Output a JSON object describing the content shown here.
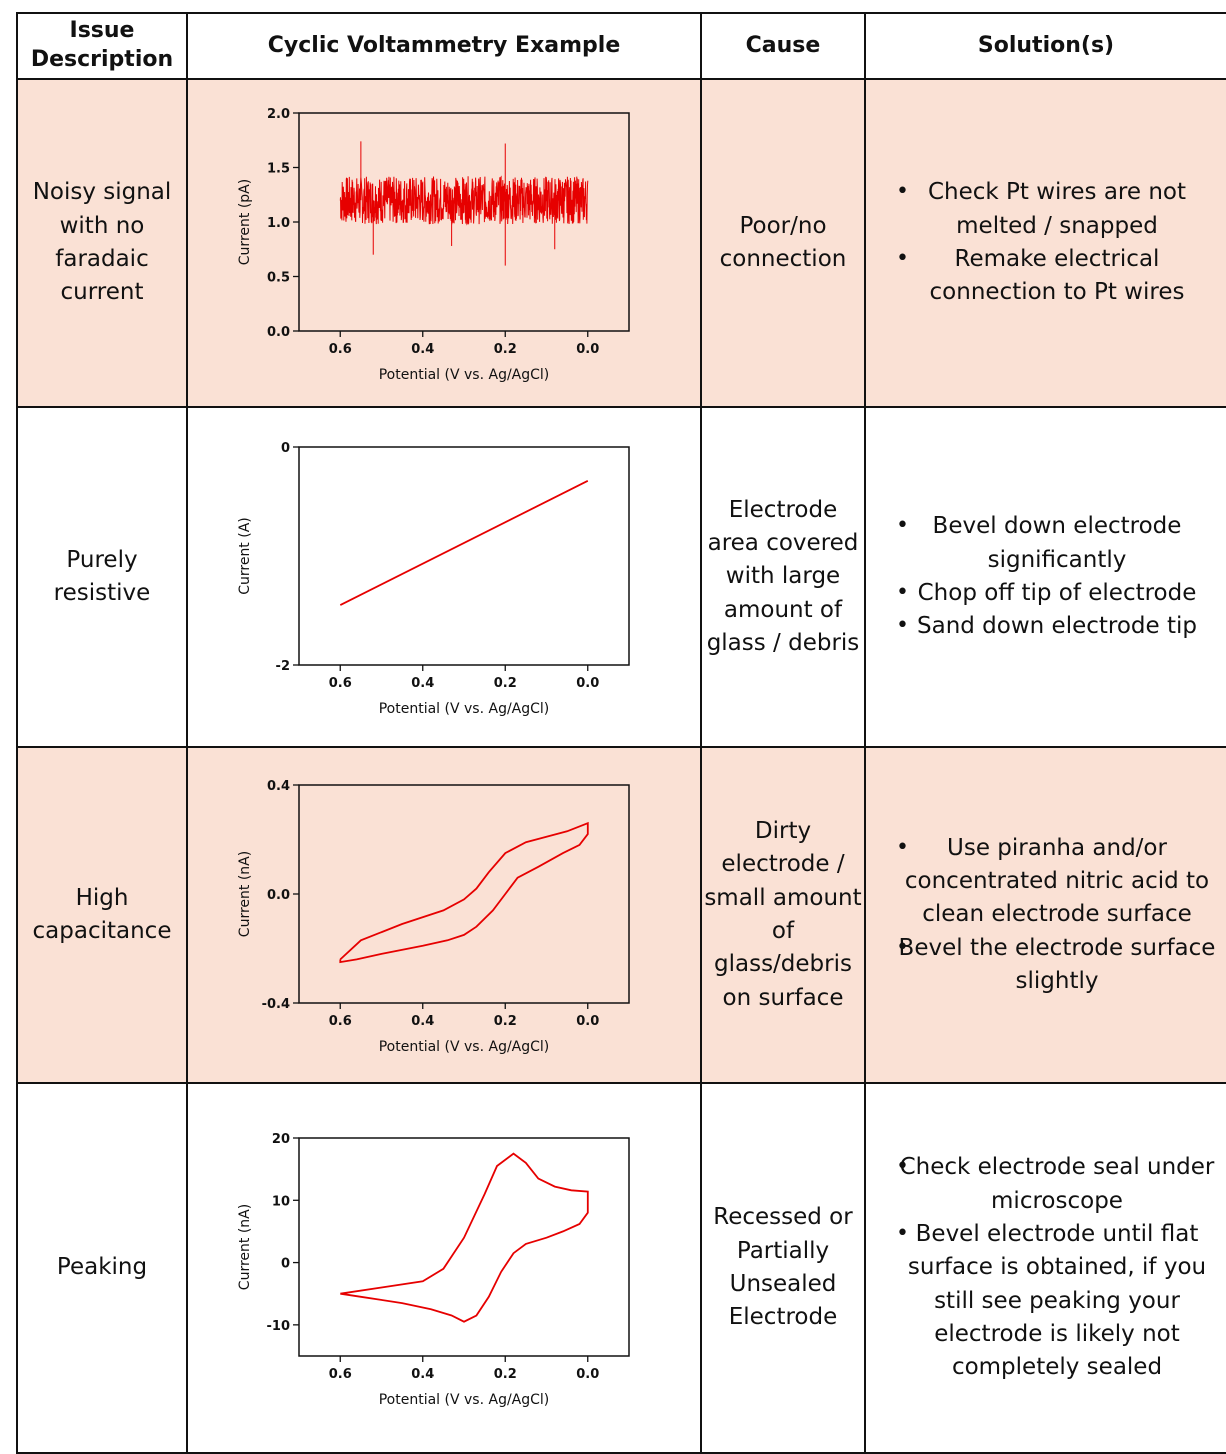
{
  "headers": {
    "issue": "Issue Description",
    "example": "Cyclic Voltammetry Example",
    "cause": "Cause",
    "solution": "Solution(s)"
  },
  "rows": [
    {
      "issue": "Noisy signal with no faradaic current",
      "cause": "Poor/no connection",
      "solutions": [
        "Check Pt wires are not melted / snapped",
        "Remake electrical connection to Pt wires"
      ],
      "shaded": true
    },
    {
      "issue": "Purely resistive",
      "cause": "Electrode area covered with large amount of glass / debris",
      "solutions": [
        "Bevel down electrode significantly",
        "Chop off tip of electrode",
        "Sand down electrode tip"
      ],
      "shaded": false
    },
    {
      "issue": "High capacitance",
      "cause": "Dirty electrode / small amount of glass/debris on surface",
      "solutions": [
        "Use piranha and/or concentrated nitric acid to clean electrode surface",
        "Bevel the electrode surface slightly"
      ],
      "shaded": true
    },
    {
      "issue": "Peaking",
      "cause": "Recessed or Partially Unsealed Electrode",
      "solutions": [
        "Check electrode seal under microscope",
        "Bevel electrode until flat surface is obtained, if you still see peaking your electrode is likely not completely sealed"
      ],
      "shaded": false
    }
  ],
  "bullet_glyph": "•",
  "chart_data": [
    {
      "type": "line",
      "xlabel": "Potential (V vs. Ag/AgCl)",
      "ylabel": "Current (pA)",
      "xlim": [
        0.7,
        -0.1
      ],
      "ylim": [
        0.0,
        2.0
      ],
      "xticks": [
        "0.6",
        "0.4",
        "0.2",
        "0.0"
      ],
      "yticks": [
        "2.0",
        "1.5",
        "1.0",
        "0.5",
        "0.0"
      ],
      "series": [
        {
          "style": "noise",
          "x_range": [
            0.6,
            0.0
          ],
          "mean": 1.2,
          "spread": 0.22,
          "spikes": [
            [
              0.55,
              1.74
            ],
            [
              0.2,
              1.72
            ],
            [
              0.52,
              0.7
            ],
            [
              0.2,
              0.6
            ],
            [
              0.08,
              0.75
            ],
            [
              0.33,
              0.78
            ]
          ]
        }
      ]
    },
    {
      "type": "line",
      "xlabel": "Potential (V vs. Ag/AgCl)",
      "ylabel": "Current (A)",
      "xlim": [
        0.7,
        -0.1
      ],
      "ylim": [
        -2,
        0
      ],
      "xticks": [
        "0.6",
        "0.4",
        "0.2",
        "0.0"
      ],
      "yticks": [
        "0",
        "-2"
      ],
      "series": [
        {
          "x": [
            0.6,
            0.0
          ],
          "y": [
            -1.45,
            -0.31
          ]
        }
      ]
    },
    {
      "type": "line",
      "xlabel": "Potential (V vs. Ag/AgCl)",
      "ylabel": "Current (nA)",
      "xlim": [
        0.7,
        -0.1
      ],
      "ylim": [
        -0.4,
        0.4
      ],
      "xticks": [
        "0.6",
        "0.4",
        "0.2",
        "0.0"
      ],
      "yticks": [
        "0.4",
        "0.0",
        "-0.4"
      ],
      "series": [
        {
          "x": [
            0.6,
            0.55,
            0.45,
            0.35,
            0.3,
            0.27,
            0.24,
            0.2,
            0.15,
            0.1,
            0.05,
            0.0,
            0.0,
            0.02,
            0.06,
            0.12,
            0.17,
            0.2,
            0.23,
            0.27,
            0.3,
            0.34,
            0.4,
            0.5,
            0.56,
            0.6,
            0.6
          ],
          "y": [
            -0.24,
            -0.17,
            -0.11,
            -0.06,
            -0.02,
            0.02,
            0.08,
            0.15,
            0.19,
            0.21,
            0.23,
            0.26,
            0.22,
            0.18,
            0.15,
            0.1,
            0.06,
            0.0,
            -0.06,
            -0.12,
            -0.15,
            -0.17,
            -0.19,
            -0.22,
            -0.24,
            -0.25,
            -0.24
          ]
        }
      ]
    },
    {
      "type": "line",
      "xlabel": "Potential (V vs. Ag/AgCl)",
      "ylabel": "Current (nA)",
      "xlim": [
        0.7,
        -0.1
      ],
      "ylim": [
        -15,
        20
      ],
      "xticks": [
        "0.6",
        "0.4",
        "0.2",
        "0.0"
      ],
      "yticks": [
        "20",
        "10",
        "0",
        "-10"
      ],
      "series": [
        {
          "x": [
            0.6,
            0.5,
            0.4,
            0.35,
            0.3,
            0.25,
            0.22,
            0.18,
            0.15,
            0.12,
            0.08,
            0.04,
            0.0,
            0.0,
            0.02,
            0.06,
            0.1,
            0.15,
            0.18,
            0.21,
            0.24,
            0.27,
            0.3,
            0.33,
            0.38,
            0.45,
            0.55,
            0.6
          ],
          "y": [
            -5,
            -4,
            -3,
            -1,
            4,
            11,
            15.5,
            17.5,
            16,
            13.5,
            12.2,
            11.6,
            11.4,
            8,
            6.2,
            5,
            4,
            3,
            1.5,
            -1.5,
            -5.5,
            -8.5,
            -9.5,
            -8.5,
            -7.5,
            -6.5,
            -5.5,
            -5
          ]
        }
      ]
    }
  ]
}
